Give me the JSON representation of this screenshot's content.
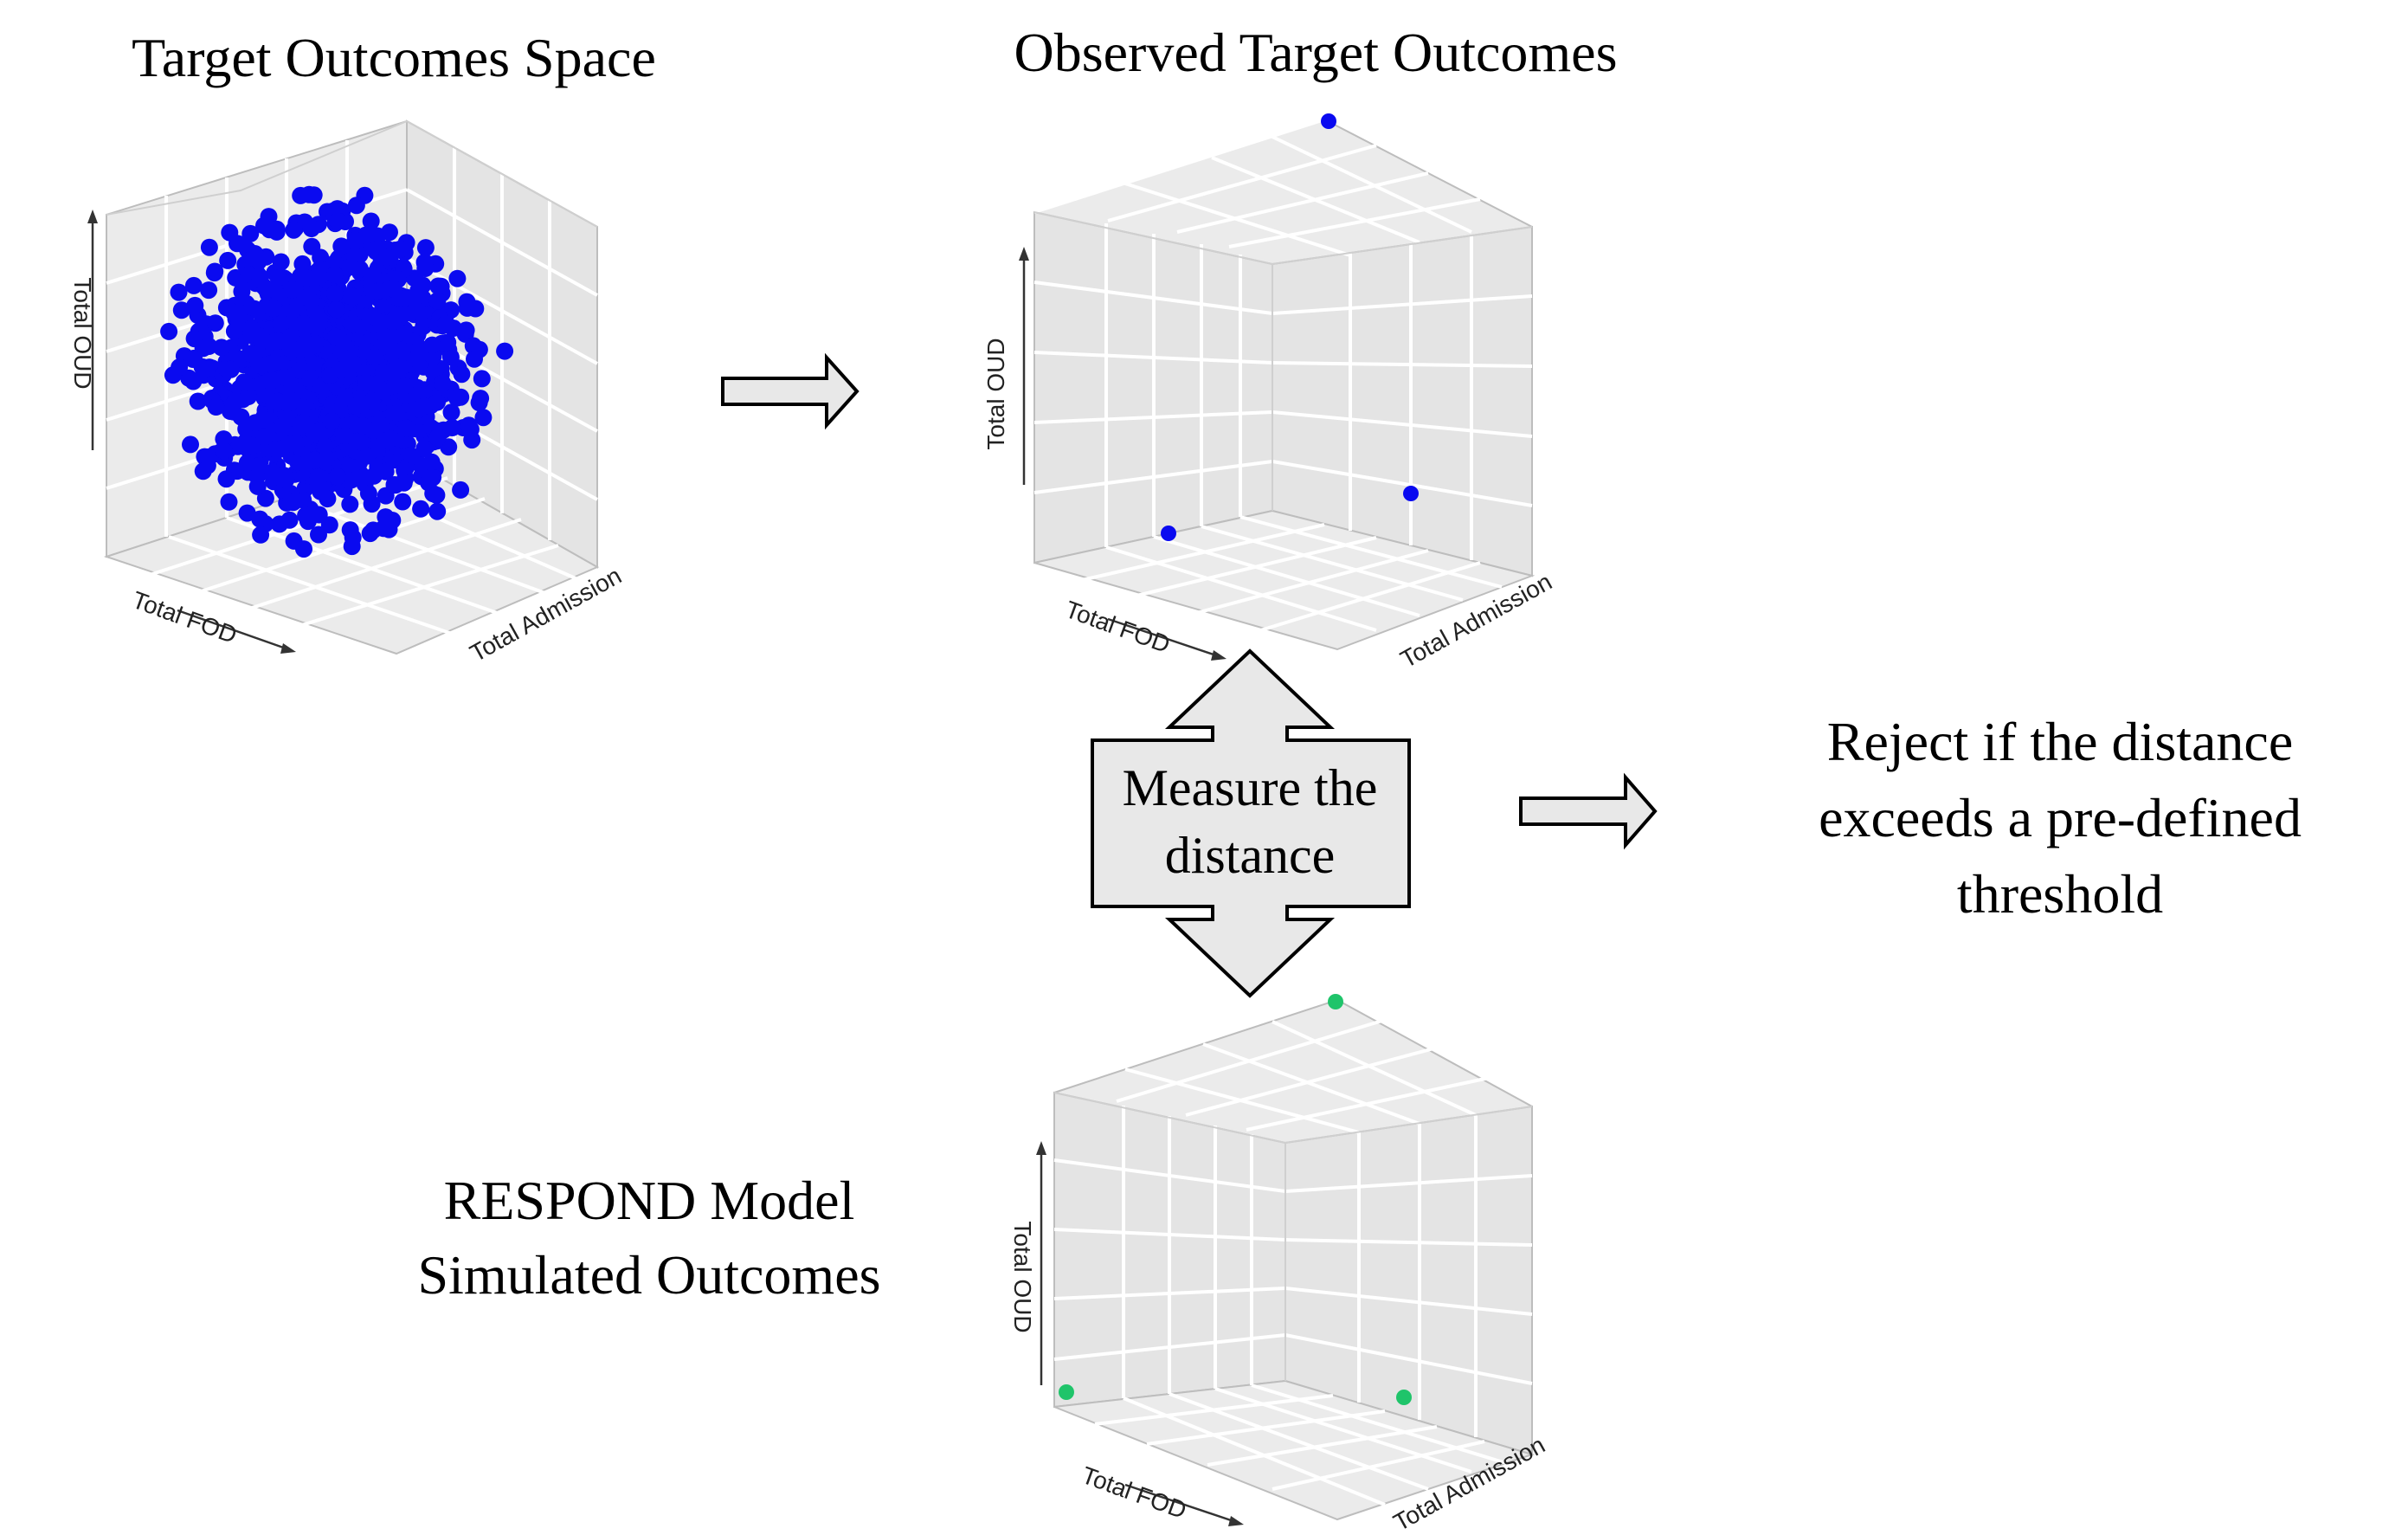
{
  "titles": {
    "target_space": "Target Outcomes Space",
    "observed": "Observed Target Outcomes",
    "respond_line1": "RESPOND Model",
    "respond_line2": "Simulated Outcomes"
  },
  "measure_box": {
    "line1": "Measure the",
    "line2": "distance"
  },
  "decision": {
    "line1": "Reject if the distance",
    "line2": "exceeds a pre-defined",
    "line3": "threshold"
  },
  "axes": {
    "oud": "Total OUD",
    "fod": "Total FOD",
    "admission": "Total Admission"
  },
  "colors": {
    "target_points": "#0a0af0",
    "simulated_points": "#1fc46a",
    "arrow_fill": "#e8e8e8"
  }
}
